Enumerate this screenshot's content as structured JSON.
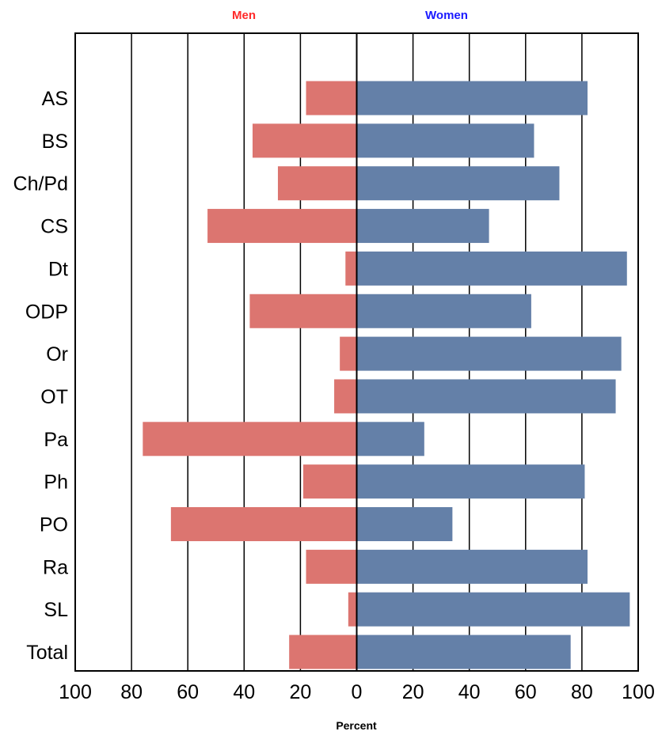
{
  "chart_data": {
    "type": "bar",
    "orientation": "horizontal",
    "layout": "diverging",
    "xlabel": "Percent",
    "xlim": [
      -100,
      100
    ],
    "x_tick_labels": [
      "100",
      "80",
      "60",
      "40",
      "20",
      "0",
      "20",
      "40",
      "60",
      "80",
      "100"
    ],
    "x_ticks": [
      -100,
      -80,
      -60,
      -40,
      -20,
      0,
      20,
      40,
      60,
      80,
      100
    ],
    "grid": "vertical",
    "legend_placement": "top",
    "categories": [
      "AS",
      "BS",
      "Ch/Pd",
      "CS",
      "Dt",
      "ODP",
      "Or",
      "OT",
      "Pa",
      "Ph",
      "PO",
      "Ra",
      "SL",
      "Total"
    ],
    "series": [
      {
        "name": "Men",
        "side": "left",
        "color": "#dc7570",
        "label_color": "#ff2a2a",
        "values": [
          18,
          37,
          28,
          53,
          4,
          38,
          6,
          8,
          76,
          19,
          66,
          18,
          3,
          24
        ]
      },
      {
        "name": "Women",
        "side": "right",
        "color": "#6480a8",
        "label_color": "#1a1aff",
        "values": [
          82,
          63,
          72,
          47,
          96,
          62,
          94,
          92,
          24,
          81,
          34,
          82,
          97,
          76
        ]
      }
    ]
  }
}
